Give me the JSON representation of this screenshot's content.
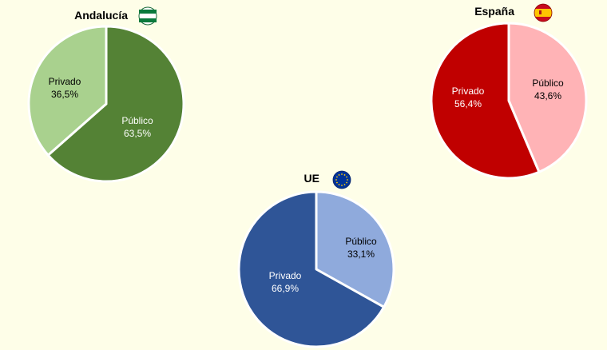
{
  "chart_data": [
    {
      "type": "pie",
      "title": "Andalucía",
      "flag_icon": "andalucia-flag-icon",
      "slices": [
        {
          "label": "Público",
          "value": 63.5,
          "display": "63,5%",
          "color": "#548235",
          "text_color": "#FFFFFF"
        },
        {
          "label": "Privado",
          "value": 36.5,
          "display": "36,5%",
          "color": "#A9D18E",
          "text_color": "#000000"
        }
      ]
    },
    {
      "type": "pie",
      "title": "España",
      "flag_icon": "spain-flag-icon",
      "slices": [
        {
          "label": "Público",
          "value": 43.6,
          "display": "43,6%",
          "color": "#FFB3B6",
          "text_color": "#000000"
        },
        {
          "label": "Privado",
          "value": 56.4,
          "display": "56,4%",
          "color": "#C00000",
          "text_color": "#FFFFFF"
        }
      ]
    },
    {
      "type": "pie",
      "title": "UE",
      "flag_icon": "eu-flag-icon",
      "slices": [
        {
          "label": "Público",
          "value": 33.1,
          "display": "33,1%",
          "color": "#8FAADC",
          "text_color": "#000000"
        },
        {
          "label": "Privado",
          "value": 66.9,
          "display": "66,9%",
          "color": "#2F5597",
          "text_color": "#FFFFFF"
        }
      ]
    }
  ],
  "colors": {
    "background": "#FEFEE8",
    "separator": "#FFFFFF"
  }
}
